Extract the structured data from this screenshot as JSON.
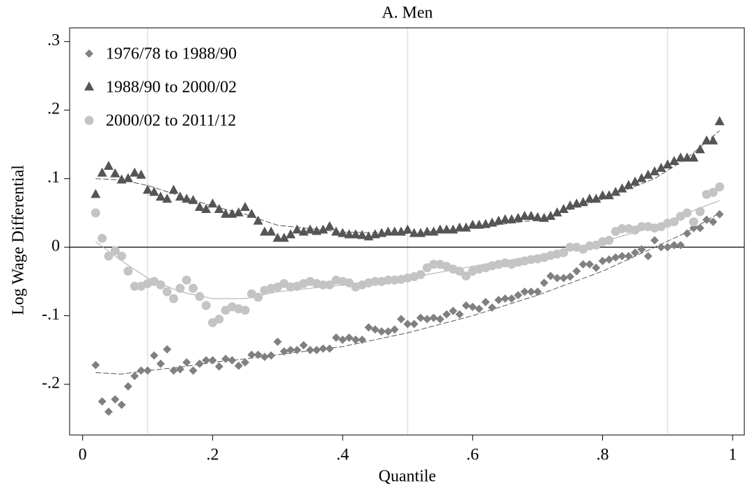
{
  "chart_data": {
    "type": "scatter",
    "title": "A. Men",
    "x_label": "Quantile",
    "y_label": "Log Wage Differential",
    "xlim": [
      -0.02,
      1.018
    ],
    "ylim": [
      -0.274,
      0.32
    ],
    "xticks": [
      0,
      {
        "value": 0.2,
        "label": ".2"
      },
      {
        "value": 0.4,
        "label": ".4"
      },
      {
        "value": 0.6,
        "label": ".6"
      },
      {
        "value": 0.8,
        "label": ".8"
      },
      1
    ],
    "yticks": [
      {
        "value": -0.2,
        "label": "-.2"
      },
      {
        "value": -0.1,
        "label": "-.1"
      },
      0,
      {
        "value": 0.1,
        "label": ".1"
      },
      {
        "value": 0.2,
        "label": ".2"
      },
      {
        "value": 0.3,
        "label": ".3"
      }
    ],
    "x_grid_lines": [
      0.1,
      0.5,
      0.9
    ],
    "reference_line": 0,
    "legend": "upper-left",
    "x": [
      0.02,
      0.03,
      0.04,
      0.05,
      0.06,
      0.07,
      0.08,
      0.09,
      0.1,
      0.11,
      0.12,
      0.13,
      0.14,
      0.15,
      0.16,
      0.17,
      0.18,
      0.19,
      0.2,
      0.21,
      0.22,
      0.23,
      0.24,
      0.25,
      0.26,
      0.27,
      0.28,
      0.29,
      0.3,
      0.31,
      0.32,
      0.33,
      0.34,
      0.35,
      0.36,
      0.37,
      0.38,
      0.39,
      0.4,
      0.41,
      0.42,
      0.43,
      0.44,
      0.45,
      0.46,
      0.47,
      0.48,
      0.49,
      0.5,
      0.51,
      0.52,
      0.53,
      0.54,
      0.55,
      0.56,
      0.57,
      0.58,
      0.59,
      0.6,
      0.61,
      0.62,
      0.63,
      0.64,
      0.65,
      0.66,
      0.67,
      0.68,
      0.69,
      0.7,
      0.71,
      0.72,
      0.73,
      0.74,
      0.75,
      0.76,
      0.77,
      0.78,
      0.79,
      0.8,
      0.81,
      0.82,
      0.83,
      0.84,
      0.85,
      0.86,
      0.87,
      0.88,
      0.89,
      0.9,
      0.91,
      0.92,
      0.93,
      0.94,
      0.95,
      0.96,
      0.97,
      0.98
    ],
    "trend_x": [
      0.02,
      0.06,
      0.1,
      0.15,
      0.2,
      0.25,
      0.3,
      0.4,
      0.5,
      0.6,
      0.7,
      0.8,
      0.88,
      0.93,
      0.98
    ],
    "series": [
      {
        "name": "1976/78 to 1988/90",
        "color": "#808080",
        "marker": "diamond",
        "values": [
          -0.172,
          -0.225,
          -0.24,
          -0.222,
          -0.23,
          -0.203,
          -0.188,
          -0.18,
          -0.18,
          -0.158,
          -0.17,
          -0.149,
          -0.18,
          -0.178,
          -0.168,
          -0.18,
          -0.17,
          -0.165,
          -0.165,
          -0.174,
          -0.163,
          -0.165,
          -0.173,
          -0.168,
          -0.157,
          -0.157,
          -0.16,
          -0.158,
          -0.138,
          -0.152,
          -0.15,
          -0.15,
          -0.143,
          -0.15,
          -0.15,
          -0.148,
          -0.148,
          -0.132,
          -0.135,
          -0.132,
          -0.135,
          -0.135,
          -0.117,
          -0.12,
          -0.123,
          -0.123,
          -0.12,
          -0.105,
          -0.112,
          -0.112,
          -0.103,
          -0.105,
          -0.103,
          -0.105,
          -0.098,
          -0.093,
          -0.098,
          -0.085,
          -0.087,
          -0.09,
          -0.08,
          -0.088,
          -0.077,
          -0.075,
          -0.075,
          -0.07,
          -0.065,
          -0.065,
          -0.065,
          -0.052,
          -0.042,
          -0.045,
          -0.045,
          -0.043,
          -0.035,
          -0.025,
          -0.025,
          -0.03,
          -0.02,
          -0.018,
          -0.015,
          -0.013,
          -0.013,
          -0.008,
          -0.003,
          -0.013,
          0.01,
          0.0,
          0.0,
          0.003,
          0.003,
          0.02,
          0.028,
          0.028,
          0.04,
          0.037,
          0.048
        ],
        "trend_values": [
          -0.183,
          -0.185,
          -0.18,
          -0.175,
          -0.168,
          -0.163,
          -0.157,
          -0.145,
          -0.125,
          -0.1,
          -0.07,
          -0.035,
          0.0,
          0.022,
          0.05
        ]
      },
      {
        "name": "1988/90 to 2000/02",
        "color": "#555555",
        "marker": "triangle",
        "values": [
          0.077,
          0.108,
          0.118,
          0.107,
          0.098,
          0.1,
          0.108,
          0.105,
          0.083,
          0.08,
          0.073,
          0.07,
          0.083,
          0.073,
          0.07,
          0.068,
          0.058,
          0.055,
          0.063,
          0.055,
          0.048,
          0.048,
          0.05,
          0.058,
          0.048,
          0.038,
          0.022,
          0.022,
          0.013,
          0.013,
          0.018,
          0.025,
          0.022,
          0.025,
          0.023,
          0.025,
          0.03,
          0.022,
          0.02,
          0.018,
          0.018,
          0.017,
          0.015,
          0.018,
          0.02,
          0.022,
          0.022,
          0.022,
          0.025,
          0.02,
          0.02,
          0.022,
          0.022,
          0.025,
          0.025,
          0.025,
          0.028,
          0.028,
          0.032,
          0.032,
          0.033,
          0.035,
          0.038,
          0.04,
          0.04,
          0.042,
          0.045,
          0.045,
          0.043,
          0.042,
          0.045,
          0.05,
          0.055,
          0.06,
          0.063,
          0.065,
          0.07,
          0.07,
          0.075,
          0.075,
          0.08,
          0.085,
          0.09,
          0.095,
          0.1,
          0.105,
          0.11,
          0.115,
          0.12,
          0.125,
          0.13,
          0.13,
          0.13,
          0.142,
          0.155,
          0.155,
          0.183
        ],
        "trend_values": [
          0.1,
          0.098,
          0.09,
          0.075,
          0.06,
          0.048,
          0.032,
          0.022,
          0.02,
          0.028,
          0.04,
          0.07,
          0.1,
          0.13,
          0.17
        ]
      },
      {
        "name": "2000/02 to 2011/12",
        "color": "#c4c4c4",
        "marker": "circle",
        "values": [
          0.05,
          0.013,
          -0.013,
          -0.005,
          -0.013,
          -0.035,
          -0.057,
          -0.057,
          -0.053,
          -0.05,
          -0.055,
          -0.065,
          -0.075,
          -0.06,
          -0.048,
          -0.06,
          -0.072,
          -0.085,
          -0.11,
          -0.105,
          -0.092,
          -0.087,
          -0.09,
          -0.092,
          -0.068,
          -0.073,
          -0.063,
          -0.06,
          -0.058,
          -0.053,
          -0.058,
          -0.057,
          -0.053,
          -0.05,
          -0.053,
          -0.055,
          -0.055,
          -0.048,
          -0.05,
          -0.052,
          -0.058,
          -0.055,
          -0.052,
          -0.05,
          -0.05,
          -0.048,
          -0.048,
          -0.047,
          -0.045,
          -0.043,
          -0.04,
          -0.03,
          -0.025,
          -0.025,
          -0.028,
          -0.032,
          -0.035,
          -0.042,
          -0.035,
          -0.032,
          -0.03,
          -0.027,
          -0.025,
          -0.023,
          -0.025,
          -0.022,
          -0.02,
          -0.018,
          -0.017,
          -0.015,
          -0.012,
          -0.01,
          -0.008,
          0.0,
          0.0,
          -0.003,
          0.002,
          0.003,
          0.008,
          0.01,
          0.023,
          0.027,
          0.027,
          0.025,
          0.03,
          0.03,
          0.028,
          0.03,
          0.035,
          0.037,
          0.045,
          0.05,
          0.037,
          0.052,
          0.077,
          0.08,
          0.088
        ],
        "trend_values": [
          0.008,
          -0.02,
          -0.045,
          -0.065,
          -0.075,
          -0.075,
          -0.065,
          -0.055,
          -0.045,
          -0.028,
          -0.012,
          0.008,
          0.03,
          0.05,
          0.068
        ]
      }
    ]
  }
}
